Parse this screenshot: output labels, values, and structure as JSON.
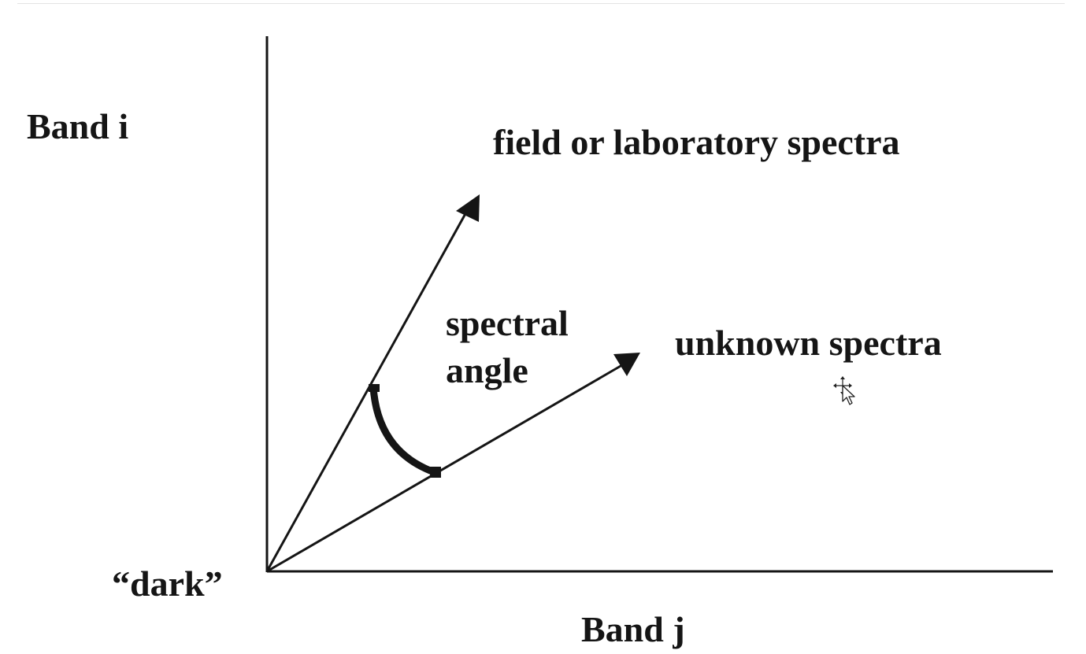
{
  "diagram": {
    "labels": {
      "band_i": "Band i",
      "band_j": "Band j",
      "origin": "“dark”",
      "reference_vector": "field or laboratory spectra",
      "unknown_vector": "unknown spectra",
      "angle_line1": "spectral",
      "angle_line2": "angle"
    },
    "colors": {
      "ink": "#151515",
      "background": "#ffffff"
    }
  },
  "cursor": {
    "icon": "move-pointer-icon"
  }
}
